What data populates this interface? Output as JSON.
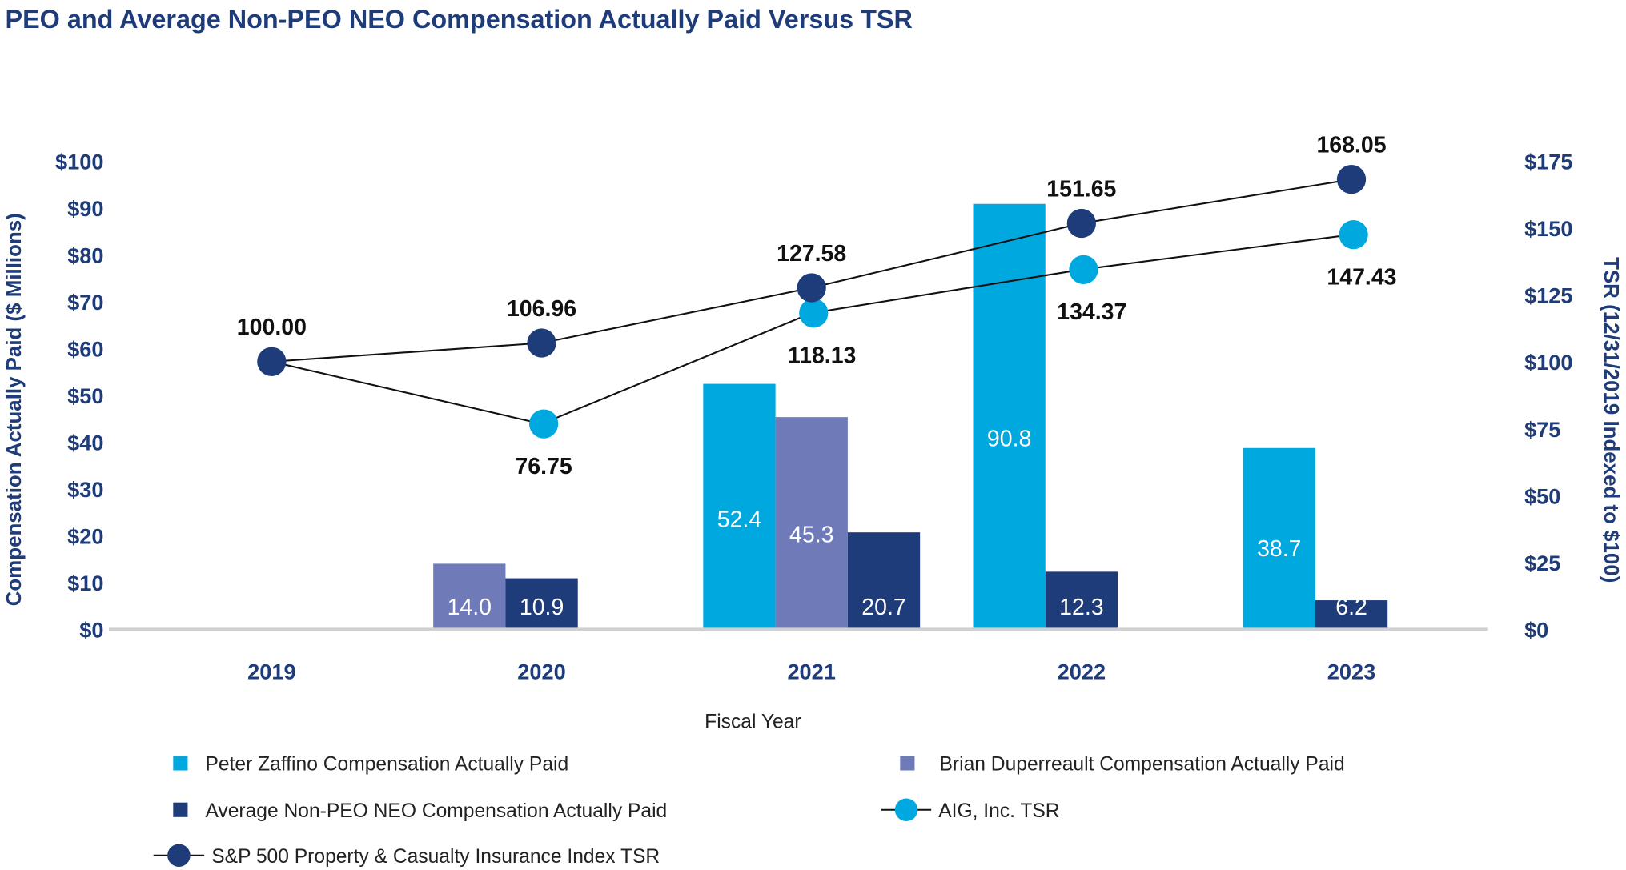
{
  "chart_data": {
    "type": "bar",
    "title": "PEO and Average Non-PEO NEO Compensation Actually Paid Versus TSR",
    "xlabel": "Fiscal Year",
    "ylabel": "Compensation Actually Paid ($ Millions)",
    "y2label": "TSR (12/31/2019 Indexed to $100)",
    "categories": [
      "2019",
      "2020",
      "2021",
      "2022",
      "2023"
    ],
    "ylim": [
      0,
      100
    ],
    "y2lim": [
      0,
      175
    ],
    "yticks": [
      "$0",
      "$10",
      "$20",
      "$30",
      "$40",
      "$50",
      "$60",
      "$70",
      "$80",
      "$90",
      "$100"
    ],
    "y2ticks": [
      "$0",
      "$25",
      "$50",
      "$75",
      "$100",
      "$125",
      "$150",
      "$175"
    ],
    "grid": false,
    "legend_placement": "bottom",
    "bar_series": [
      {
        "name": "Peter Zaffino Compensation Actually Paid",
        "color": "#00a8e0",
        "values": [
          null,
          null,
          52.4,
          90.8,
          38.7
        ],
        "labels": [
          "",
          "",
          "52.4",
          "90.8",
          "38.7"
        ]
      },
      {
        "name": "Brian Duperreault Compensation Actually Paid",
        "color": "#6e7bb8",
        "values": [
          null,
          14.0,
          45.3,
          null,
          null
        ],
        "labels": [
          "",
          "14.0",
          "45.3",
          "",
          ""
        ]
      },
      {
        "name": "Average Non-PEO NEO Compensation Actually Paid",
        "color": "#1f3c7a",
        "values": [
          null,
          10.9,
          20.7,
          12.3,
          6.2
        ],
        "labels": [
          "",
          "10.9",
          "20.7",
          "12.3",
          "6.2"
        ]
      }
    ],
    "line_series": [
      {
        "name": "AIG, Inc. TSR",
        "color": "#00a8e0",
        "axis": "right",
        "values": [
          100.0,
          76.75,
          118.13,
          134.37,
          147.43
        ],
        "labels": [
          "",
          "76.75",
          "118.13",
          "134.37",
          "147.43"
        ]
      },
      {
        "name": "S&P 500 Property & Casualty Insurance Index TSR",
        "color": "#1f3c7a",
        "axis": "right",
        "values": [
          100.0,
          106.96,
          127.58,
          151.65,
          168.05
        ],
        "labels": [
          "100.00",
          "106.96",
          "127.58",
          "151.65",
          "168.05"
        ]
      }
    ]
  }
}
